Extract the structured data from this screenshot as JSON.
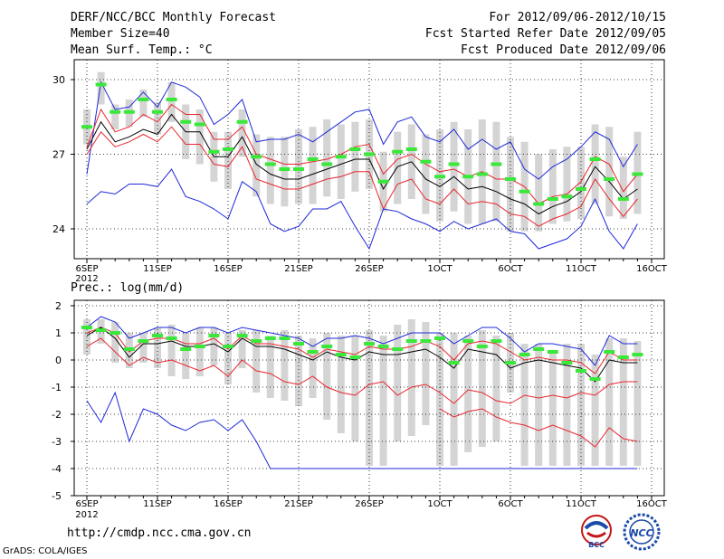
{
  "header": {
    "title": "DERF/NCC/BCC Monthly Forecast",
    "member_size": "Member Size=40",
    "variable": "Mean Surf. Temp.: °C",
    "period": "For 2012/09/06-2012/10/15",
    "start_date": "Fcst Started Refer Date 2012/09/05",
    "produced_date": "Fcst Produced Date 2012/09/06"
  },
  "footer": {
    "url": "http://cmdp.ncc.cma.gov.cn",
    "credit": "GrADS: COLA/IGES",
    "logo_bcc": "BCC",
    "logo_ncc": "NCC"
  },
  "colors": {
    "box": "#d4d4d4",
    "mean": "#000000",
    "band": "#e8262e",
    "extreme": "#1e28d8",
    "obs": "#3ae83a"
  },
  "chart_data": [
    {
      "type": "line",
      "title": "Mean Surf. Temp.: °C",
      "days": [
        "6SEP",
        "7SEP",
        "8SEP",
        "9SEP",
        "10SEP",
        "11SEP",
        "12SEP",
        "13SEP",
        "14SEP",
        "15SEP",
        "16SEP",
        "17SEP",
        "18SEP",
        "19SEP",
        "20SEP",
        "21SEP",
        "22SEP",
        "23SEP",
        "24SEP",
        "25SEP",
        "26SEP",
        "27SEP",
        "28SEP",
        "29SEP",
        "30SEP",
        "1OCT",
        "2OCT",
        "3OCT",
        "4OCT",
        "5OCT",
        "6OCT",
        "7OCT",
        "8OCT",
        "9OCT",
        "10OCT",
        "11OCT",
        "12OCT",
        "13OCT",
        "14OCT",
        "15OCT"
      ],
      "xtick_labels": [
        "6SEP\n2012",
        "11SEP",
        "16SEP",
        "21SEP",
        "26SEP",
        "1OCT",
        "6OCT",
        "11OCT",
        "16OCT"
      ],
      "xtick_days": [
        0,
        5,
        10,
        15,
        20,
        25,
        30,
        35,
        40
      ],
      "ylim": [
        22.8,
        30.8
      ],
      "yticks": [
        24,
        27,
        30
      ],
      "grid": true,
      "series": [
        {
          "name": "max",
          "values": [
            26.2,
            29.9,
            28.8,
            28.9,
            29.5,
            28.9,
            29.9,
            29.7,
            29.3,
            28.2,
            28.6,
            29.2,
            27.5,
            27.6,
            27.6,
            27.8,
            27.5,
            27.9,
            28.3,
            28.7,
            28.8,
            27.4,
            28.3,
            28.5,
            27.7,
            27.5,
            28.0,
            27.2,
            27.6,
            27.2,
            27.5,
            26.4,
            26.0,
            26.5,
            26.8,
            27.3,
            27.9,
            27.6,
            26.5,
            27.4
          ]
        },
        {
          "name": "upper",
          "values": [
            27.3,
            28.8,
            27.9,
            28.1,
            28.6,
            28.3,
            29.0,
            28.6,
            28.6,
            27.6,
            27.6,
            28.1,
            27.0,
            26.8,
            26.6,
            26.6,
            26.7,
            26.8,
            27.0,
            27.3,
            27.4,
            26.2,
            26.8,
            27.0,
            26.6,
            26.3,
            26.4,
            26.1,
            26.3,
            26.0,
            26.0,
            25.7,
            25.0,
            25.3,
            25.4,
            25.9,
            26.9,
            26.6,
            25.5,
            26.2
          ]
        },
        {
          "name": "mean",
          "values": [
            27.2,
            28.3,
            27.5,
            27.7,
            28.0,
            27.8,
            28.6,
            27.9,
            27.9,
            26.9,
            26.9,
            27.7,
            26.6,
            26.2,
            26.0,
            26.0,
            26.2,
            26.4,
            26.6,
            26.8,
            26.8,
            25.6,
            26.5,
            26.7,
            26.0,
            25.7,
            26.1,
            25.6,
            25.7,
            25.5,
            25.2,
            25.0,
            24.6,
            24.9,
            25.1,
            25.5,
            26.5,
            25.9,
            25.2,
            25.6
          ]
        },
        {
          "name": "lower",
          "values": [
            27.0,
            27.9,
            27.3,
            27.5,
            27.8,
            27.5,
            28.1,
            27.4,
            27.4,
            26.6,
            26.5,
            27.3,
            26.0,
            25.8,
            25.6,
            25.6,
            25.8,
            26.0,
            26.1,
            26.3,
            26.3,
            24.8,
            25.8,
            26.0,
            25.2,
            25.0,
            25.6,
            25.0,
            25.1,
            25.0,
            24.6,
            24.5,
            24.1,
            24.4,
            24.6,
            24.9,
            26.0,
            25.2,
            24.5,
            25.2
          ]
        },
        {
          "name": "min",
          "values": [
            25.0,
            25.5,
            25.4,
            25.8,
            25.8,
            25.7,
            26.4,
            25.3,
            25.1,
            24.8,
            24.4,
            25.9,
            25.5,
            24.2,
            23.9,
            24.1,
            24.8,
            24.8,
            25.1,
            24.1,
            23.2,
            24.8,
            24.7,
            24.4,
            24.2,
            23.9,
            24.3,
            24.0,
            24.2,
            24.4,
            23.9,
            23.8,
            23.2,
            23.4,
            23.6,
            24.1,
            25.2,
            23.9,
            23.2,
            24.2
          ]
        }
      ],
      "box_low": [
        27.4,
        29.0,
        28.0,
        28.1,
        28.5,
        27.8,
        28.3,
        26.8,
        26.6,
        25.9,
        25.6,
        26.9,
        25.3,
        25.0,
        24.9,
        25.0,
        25.0,
        25.3,
        25.2,
        25.5,
        25.6,
        24.7,
        25.0,
        25.2,
        24.6,
        24.3,
        24.7,
        24.2,
        24.2,
        24.3,
        23.9,
        23.9,
        23.9,
        24.2,
        24.3,
        24.4,
        25.0,
        24.5,
        24.4,
        24.6
      ],
      "box_high": [
        28.8,
        30.3,
        29.0,
        29.2,
        29.6,
        29.1,
        29.9,
        29.0,
        28.8,
        27.9,
        27.9,
        28.8,
        27.8,
        27.7,
        27.7,
        28.0,
        28.1,
        28.4,
        28.2,
        28.3,
        28.4,
        27.1,
        27.9,
        28.2,
        27.8,
        28.0,
        28.3,
        28.0,
        28.4,
        28.3,
        27.7,
        27.5,
        27.0,
        27.2,
        27.3,
        27.3,
        28.2,
        28.1,
        26.9,
        27.9
      ],
      "obs": [
        28.1,
        29.8,
        28.7,
        28.7,
        29.2,
        28.7,
        29.2,
        28.3,
        28.2,
        27.1,
        27.2,
        28.3,
        26.9,
        26.6,
        26.4,
        26.4,
        26.8,
        26.6,
        26.9,
        27.2,
        27.0,
        25.9,
        27.1,
        27.2,
        26.7,
        26.1,
        26.6,
        26.1,
        26.2,
        26.6,
        26.0,
        25.5,
        25.0,
        25.2,
        25.3,
        25.6,
        26.8,
        26.0,
        25.2,
        26.2
      ]
    },
    {
      "type": "line",
      "title": "Prec.: log(mm/d)",
      "days": [
        "6SEP",
        "7SEP",
        "8SEP",
        "9SEP",
        "10SEP",
        "11SEP",
        "12SEP",
        "13SEP",
        "14SEP",
        "15SEP",
        "16SEP",
        "17SEP",
        "18SEP",
        "19SEP",
        "20SEP",
        "21SEP",
        "22SEP",
        "23SEP",
        "24SEP",
        "25SEP",
        "26SEP",
        "27SEP",
        "28SEP",
        "29SEP",
        "30SEP",
        "1OCT",
        "2OCT",
        "3OCT",
        "4OCT",
        "5OCT",
        "6OCT",
        "7OCT",
        "8OCT",
        "9OCT",
        "10OCT",
        "11OCT",
        "12OCT",
        "13OCT",
        "14OCT",
        "15OCT"
      ],
      "xtick_labels": [
        "6SEP\n2012",
        "11SEP",
        "16SEP",
        "21SEP",
        "26SEP",
        "1OCT",
        "6OCT",
        "11OCT",
        "16OCT"
      ],
      "xtick_days": [
        0,
        5,
        10,
        15,
        20,
        25,
        30,
        35,
        40
      ],
      "ylim": [
        -5,
        2.2
      ],
      "yticks": [
        -5,
        -4,
        -3,
        -2,
        -1,
        0,
        1,
        2
      ],
      "grid": true,
      "series": [
        {
          "name": "max",
          "values": [
            1.2,
            1.6,
            1.4,
            0.8,
            1.0,
            1.2,
            1.2,
            1.0,
            1.2,
            1.2,
            1.0,
            1.2,
            1.1,
            1.0,
            0.9,
            0.8,
            0.5,
            0.8,
            0.8,
            0.9,
            0.8,
            0.6,
            0.8,
            1.0,
            1.0,
            1.0,
            0.6,
            0.9,
            1.2,
            1.2,
            0.8,
            0.3,
            0.6,
            0.6,
            0.5,
            0.4,
            -0.2,
            0.9,
            0.6,
            0.6
          ]
        },
        {
          "name": "upper",
          "values": [
            1.0,
            1.2,
            1.0,
            0.3,
            0.7,
            0.8,
            0.8,
            0.6,
            0.6,
            0.8,
            0.4,
            0.9,
            0.6,
            0.6,
            0.5,
            0.4,
            0.1,
            0.4,
            0.3,
            0.2,
            0.5,
            0.4,
            0.4,
            0.5,
            0.7,
            0.5,
            0.0,
            0.6,
            0.7,
            0.6,
            0.3,
            0.0,
            0.1,
            0.0,
            0.0,
            -0.1,
            -0.5,
            0.3,
            0.0,
            0.0
          ]
        },
        {
          "name": "mean",
          "values": [
            0.9,
            1.2,
            0.8,
            0.1,
            0.6,
            0.6,
            0.7,
            0.5,
            0.5,
            0.6,
            0.3,
            0.8,
            0.5,
            0.5,
            0.4,
            0.2,
            0.0,
            0.3,
            0.1,
            0.0,
            0.3,
            0.2,
            0.2,
            0.3,
            0.4,
            0.1,
            -0.3,
            0.4,
            0.3,
            0.2,
            -0.3,
            -0.1,
            0.0,
            -0.1,
            -0.2,
            -0.3,
            -0.8,
            0.0,
            -0.1,
            -0.1
          ]
        },
        {
          "name": "lower",
          "values": [
            0.5,
            0.8,
            0.3,
            -0.2,
            0.1,
            -0.1,
            0.0,
            -0.2,
            -0.4,
            -0.2,
            -0.6,
            0.0,
            -0.4,
            -0.5,
            -0.8,
            -0.9,
            -0.6,
            -1.0,
            -1.2,
            -1.3,
            -0.9,
            -0.8,
            -1.3,
            -1.0,
            -0.9,
            -1.2,
            -1.6,
            -1.1,
            -1.2,
            -1.5,
            -1.6,
            -1.3,
            -1.4,
            -1.3,
            -1.4,
            -1.2,
            -1.3,
            -0.9,
            -0.8,
            -0.8
          ]
        },
        {
          "name": "min",
          "values": [
            -1.5,
            -2.3,
            -1.2,
            -3.0,
            -1.8,
            -2.0,
            -2.4,
            -2.6,
            -2.3,
            -2.2,
            -2.6,
            -2.2,
            -3.0,
            -4.0,
            -4.0,
            -4.0,
            -4.0,
            -4.0,
            -4.0,
            -4.0,
            -4.0,
            -4.0,
            -4.0,
            -4.0,
            -4.0,
            -4.0,
            -4.0,
            -4.0,
            -4.0,
            -4.0,
            -4.0,
            -4.0,
            -4.0,
            -4.0,
            -4.0,
            -4.0,
            -4.0,
            -4.0,
            -4.0,
            -4.0
          ]
        },
        {
          "name": "q10",
          "values": [
            null,
            null,
            null,
            null,
            null,
            null,
            null,
            null,
            null,
            null,
            null,
            null,
            null,
            null,
            null,
            null,
            null,
            null,
            null,
            null,
            null,
            null,
            null,
            null,
            null,
            -1.8,
            -2.1,
            -1.9,
            -1.8,
            -2.1,
            -2.3,
            -2.4,
            -2.6,
            -2.4,
            -2.6,
            -2.8,
            -3.2,
            -2.5,
            -2.9,
            -3.0
          ]
        }
      ],
      "box_low": [
        0.2,
        0.6,
        -0.1,
        -0.3,
        -0.1,
        -0.3,
        -0.6,
        -0.7,
        -0.6,
        -0.2,
        -0.9,
        -0.3,
        -1.2,
        -1.4,
        -1.5,
        -1.7,
        -1.4,
        -2.2,
        -2.7,
        -3.0,
        -3.9,
        -3.9,
        -3.0,
        -2.8,
        -2.4,
        -3.9,
        -3.9,
        -3.4,
        -3.2,
        -3.0,
        -1.2,
        -3.9,
        -3.9,
        -3.9,
        -3.9,
        -3.9,
        -3.9,
        -3.9,
        -3.9,
        -3.9
      ],
      "box_high": [
        1.5,
        1.5,
        1.4,
        1.0,
        1.0,
        1.2,
        1.3,
        1.0,
        1.2,
        1.2,
        1.0,
        1.1,
        1.1,
        0.9,
        1.1,
        0.9,
        0.8,
        1.0,
        0.9,
        0.9,
        1.1,
        0.9,
        1.3,
        1.5,
        1.4,
        1.0,
        1.0,
        0.9,
        1.1,
        0.9,
        1.0,
        0.6,
        0.6,
        0.3,
        0.6,
        0.6,
        0.2,
        0.8,
        0.8,
        0.7
      ],
      "obs": [
        1.2,
        1.1,
        1.0,
        0.4,
        0.7,
        0.9,
        0.8,
        0.4,
        0.5,
        0.9,
        0.5,
        0.9,
        0.7,
        0.8,
        0.8,
        0.6,
        0.3,
        0.5,
        0.2,
        0.1,
        0.6,
        0.5,
        0.4,
        0.7,
        0.7,
        0.8,
        -0.1,
        0.7,
        0.5,
        0.7,
        -0.1,
        0.2,
        0.4,
        0.3,
        -0.1,
        -0.4,
        -0.7,
        0.3,
        0.1,
        0.2
      ]
    }
  ]
}
